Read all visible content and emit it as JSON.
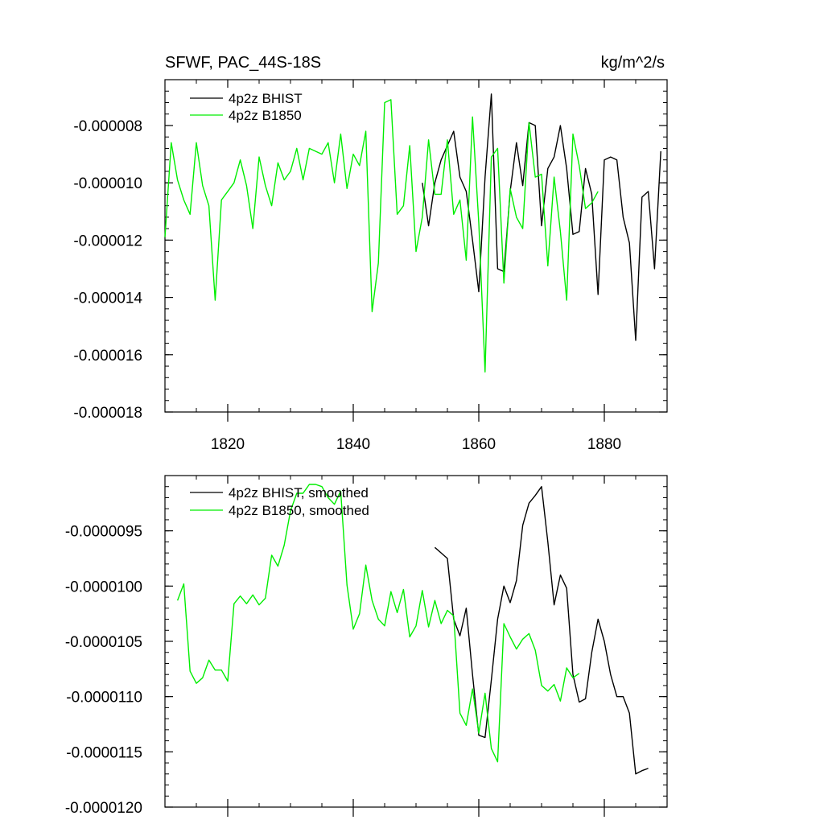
{
  "chart_data": [
    {
      "type": "line",
      "title": "SFWF, PAC_44S-18S",
      "units": "kg/m^2/s",
      "xlabel": "",
      "ylabel": "",
      "xlim": [
        1810,
        1890
      ],
      "ylim": [
        -1.8e-05,
        -6.4e-06
      ],
      "x_ticks": [
        1820,
        1840,
        1860,
        1880
      ],
      "x_tick_labels": [
        "1820",
        "1840",
        "1860",
        "1880"
      ],
      "y_ticks": [
        -8e-06,
        -1e-05,
        -1.2e-05,
        -1.4e-05,
        -1.6e-05,
        -1.8e-05
      ],
      "y_tick_labels": [
        "-0.000008",
        "-0.000010",
        "-0.000012",
        "-0.000014",
        "-0.000016",
        "-0.000018"
      ],
      "legend_position": "top-left",
      "series": [
        {
          "name": "4p2z BHIST",
          "color": "#000000",
          "x": [
            1851,
            1852,
            1853,
            1854,
            1855,
            1856,
            1857,
            1858,
            1859,
            1860,
            1861,
            1862,
            1863,
            1864,
            1865,
            1866,
            1867,
            1868,
            1869,
            1870,
            1871,
            1872,
            1873,
            1874,
            1875,
            1876,
            1877,
            1878,
            1879,
            1880,
            1881,
            1882,
            1883,
            1884,
            1885,
            1886,
            1887,
            1888,
            1889
          ],
          "y": [
            -1e-05,
            -1.15e-05,
            -1e-05,
            -9.2e-06,
            -8.7e-06,
            -8.2e-06,
            -9.8e-06,
            -1.03e-05,
            -1.2e-05,
            -1.38e-05,
            -9.8e-06,
            -6.9e-06,
            -1.3e-05,
            -1.31e-05,
            -1.03e-05,
            -8.6e-06,
            -1.01e-05,
            -7.9e-06,
            -8e-06,
            -1.15e-05,
            -9.5e-06,
            -9.1e-06,
            -8e-06,
            -9.5e-06,
            -1.18e-05,
            -1.17e-05,
            -9.5e-06,
            -1.04e-05,
            -1.39e-05,
            -9.2e-06,
            -9.1e-06,
            -9.2e-06,
            -1.12e-05,
            -1.21e-05,
            -1.55e-05,
            -1.05e-05,
            -1.03e-05,
            -1.3e-05,
            -8.9e-06
          ]
        },
        {
          "name": "4p2z B1850",
          "color": "#00ee00",
          "x": [
            1810,
            1811,
            1812,
            1813,
            1814,
            1815,
            1816,
            1817,
            1818,
            1819,
            1820,
            1821,
            1822,
            1823,
            1824,
            1825,
            1826,
            1827,
            1828,
            1829,
            1830,
            1831,
            1832,
            1833,
            1834,
            1835,
            1836,
            1837,
            1838,
            1839,
            1840,
            1841,
            1842,
            1843,
            1844,
            1845,
            1846,
            1847,
            1848,
            1849,
            1850,
            1851,
            1852,
            1853,
            1854,
            1855,
            1856,
            1857,
            1858,
            1859,
            1860,
            1861,
            1862,
            1863,
            1864,
            1865,
            1866,
            1867,
            1868,
            1869,
            1870,
            1871,
            1872,
            1873,
            1874,
            1875,
            1876,
            1877,
            1878,
            1879
          ],
          "y": [
            -1.19e-05,
            -8.6e-06,
            -9.9e-06,
            -1.06e-05,
            -1.11e-05,
            -8.6e-06,
            -1.01e-05,
            -1.08e-05,
            -1.41e-05,
            -1.06e-05,
            -1.03e-05,
            -1e-05,
            -9.2e-06,
            -1.01e-05,
            -1.16e-05,
            -9.1e-06,
            -1.01e-05,
            -1.08e-05,
            -9.3e-06,
            -9.9e-06,
            -9.6e-06,
            -8.8e-06,
            -9.9e-06,
            -8.8e-06,
            -8.9e-06,
            -9e-06,
            -8.6e-06,
            -1e-05,
            -8.3e-06,
            -1.02e-05,
            -9e-06,
            -9.4e-06,
            -8.2e-06,
            -1.45e-05,
            -1.28e-05,
            -7.2e-06,
            -7.1e-06,
            -1.11e-05,
            -1.08e-05,
            -8.7e-06,
            -1.24e-05,
            -1.12e-05,
            -8.5e-06,
            -1.04e-05,
            -1.04e-05,
            -8.5e-06,
            -1.11e-05,
            -1.06e-05,
            -1.27e-05,
            -7.7e-06,
            -1.14e-05,
            -1.66e-05,
            -9.1e-06,
            -8.8e-06,
            -1.35e-05,
            -1.02e-05,
            -1.12e-05,
            -1.16e-05,
            -7.9e-06,
            -9.8e-06,
            -9.7e-06,
            -1.29e-05,
            -9.8e-06,
            -1.17e-05,
            -1.41e-05,
            -8.3e-06,
            -9.4e-06,
            -1.09e-05,
            -1.07e-05,
            -1.03e-05
          ]
        }
      ]
    },
    {
      "type": "line",
      "title": "",
      "xlabel": "",
      "ylabel": "",
      "xlim": [
        1810,
        1890
      ],
      "ylim": [
        -1.2e-05,
        -9e-06
      ],
      "x_ticks": [
        1820,
        1840,
        1860,
        1880
      ],
      "y_ticks": [
        -9.5e-06,
        -1e-05,
        -1.05e-05,
        -1.1e-05,
        -1.15e-05,
        -1.2e-05
      ],
      "y_tick_labels": [
        "-0.0000095",
        "-0.0000100",
        "-0.0000105",
        "-0.0000110",
        "-0.0000115",
        "-0.0000120"
      ],
      "legend_position": "top-left",
      "series": [
        {
          "name": "4p2z BHIST, smoothed",
          "color": "#000000",
          "x": [
            1853,
            1854,
            1855,
            1856,
            1857,
            1858,
            1859,
            1860,
            1861,
            1862,
            1863,
            1864,
            1865,
            1866,
            1867,
            1868,
            1869,
            1870,
            1871,
            1872,
            1873,
            1874,
            1875,
            1876,
            1877,
            1878,
            1879,
            1880,
            1881,
            1882,
            1883,
            1884,
            1885,
            1886,
            1887
          ],
          "y": [
            -9.65e-06,
            -9.7e-06,
            -9.75e-06,
            -1.03e-05,
            -1.045e-05,
            -1.02e-05,
            -1.08e-05,
            -1.135e-05,
            -1.137e-05,
            -1.085e-05,
            -1.03e-05,
            -1e-05,
            -1.015e-05,
            -9.95e-06,
            -9.45e-06,
            -9.25e-06,
            -9.18e-06,
            -9.1e-06,
            -9.6e-06,
            -1.017e-05,
            -9.9e-06,
            -1.002e-05,
            -1.08e-05,
            -1.105e-05,
            -1.102e-05,
            -1.06e-05,
            -1.03e-05,
            -1.05e-05,
            -1.08e-05,
            -1.1e-05,
            -1.1e-05,
            -1.115e-05,
            -1.17e-05,
            -1.167e-05,
            -1.165e-05
          ]
        },
        {
          "name": "4p2z B1850, smoothed",
          "color": "#00ee00",
          "x": [
            1812,
            1813,
            1814,
            1815,
            1816,
            1817,
            1818,
            1819,
            1820,
            1821,
            1822,
            1823,
            1824,
            1825,
            1826,
            1827,
            1828,
            1829,
            1830,
            1831,
            1832,
            1833,
            1834,
            1835,
            1836,
            1837,
            1838,
            1839,
            1840,
            1841,
            1842,
            1843,
            1844,
            1845,
            1846,
            1847,
            1848,
            1849,
            1850,
            1851,
            1852,
            1853,
            1854,
            1855,
            1856,
            1857,
            1858,
            1859,
            1860,
            1861,
            1862,
            1863,
            1864,
            1865,
            1866,
            1867,
            1868,
            1869,
            1870,
            1871,
            1872,
            1873,
            1874,
            1875,
            1876
          ],
          "y": [
            -1.013e-05,
            -9.98e-06,
            -1.077e-05,
            -1.088e-05,
            -1.083e-05,
            -1.067e-05,
            -1.076e-05,
            -1.076e-05,
            -1.086e-05,
            -1.016e-05,
            -1.009e-05,
            -1.016e-05,
            -1.008e-05,
            -1.017e-05,
            -1.011e-05,
            -9.72e-06,
            -9.82e-06,
            -9.63e-06,
            -9.32e-06,
            -9.16e-06,
            -9.16e-06,
            -9.08e-06,
            -9.08e-06,
            -9.1e-06,
            -9.2e-06,
            -9.26e-06,
            -9.14e-06,
            -9.99e-06,
            -1.039e-05,
            -1.025e-05,
            -9.81e-06,
            -1.013e-05,
            -1.03e-05,
            -1.036e-05,
            -1.005e-05,
            -1.024e-05,
            -1.003e-05,
            -1.046e-05,
            -1.036e-05,
            -1.004e-05,
            -1.037e-05,
            -1.013e-05,
            -1.034e-05,
            -1.022e-05,
            -1.027e-05,
            -1.115e-05,
            -1.126e-05,
            -1.093e-05,
            -1.133e-05,
            -1.097e-05,
            -1.147e-05,
            -1.159e-05,
            -1.034e-05,
            -1.046e-05,
            -1.057e-05,
            -1.048e-05,
            -1.043e-05,
            -1.058e-05,
            -1.09e-05,
            -1.095e-05,
            -1.089e-05,
            -1.104e-05,
            -1.074e-05,
            -1.083e-05,
            -1.079e-05
          ]
        }
      ]
    }
  ]
}
